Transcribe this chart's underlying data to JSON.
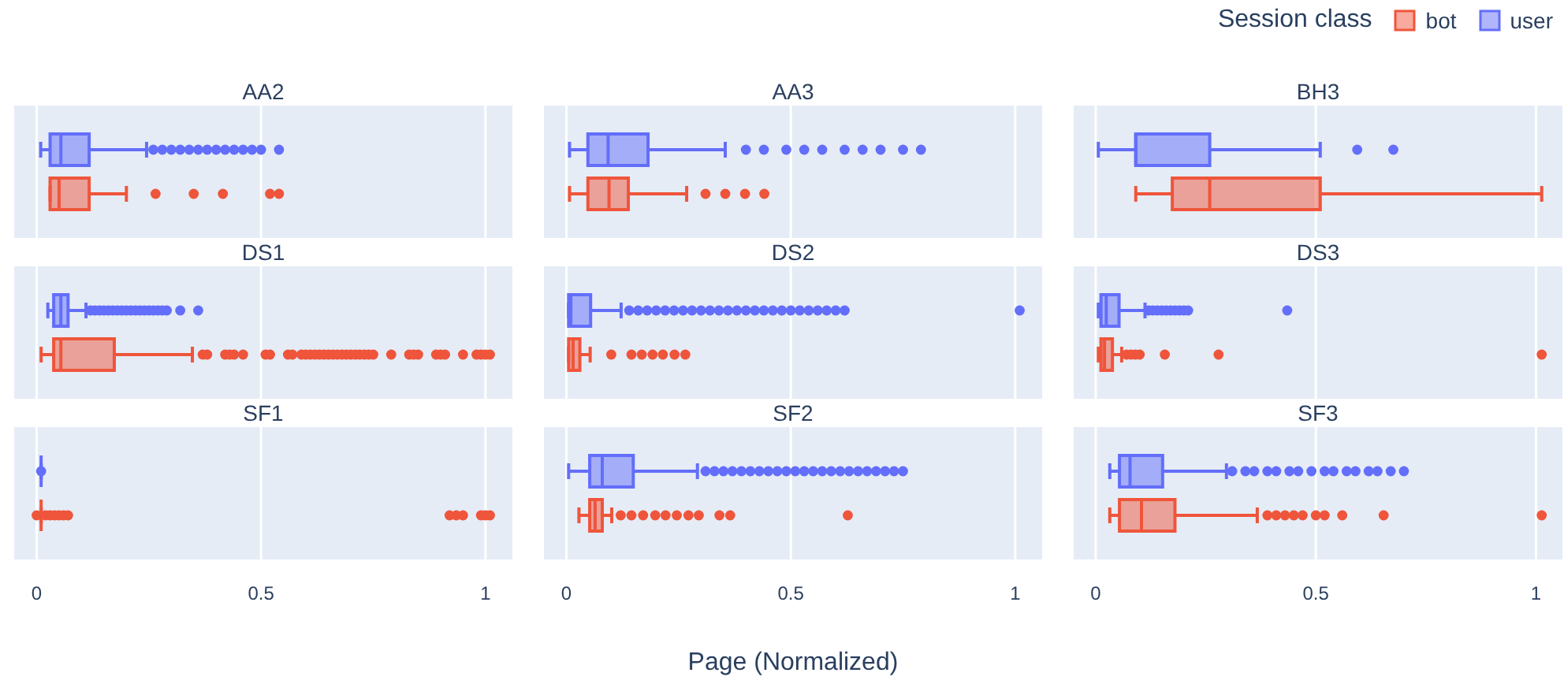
{
  "chart_data": [
    {
      "type": "box",
      "orientation": "horizontal",
      "categories": [
        null,
        null,
        null
      ],
      "annotations": [
        "AA2",
        "DS1",
        "SF1"
      ],
      "xlim": [
        -0.05,
        1.06
      ],
      "xticks": [
        0,
        0.5,
        1
      ],
      "grid": "x",
      "tick_labels": "x",
      "series": [
        {
          "color": "#ef553b",
          "boxes": [
            {
              "low": 0.03,
              "q1": 0.03,
              "median": 0.05,
              "q3": 0.117,
              "high": 0.2,
              "outliers": [
                0.265,
                0.35,
                0.415,
                0.52,
                0.54
              ]
            },
            {
              "low": 0.01,
              "q1": 0.038,
              "median": 0.054,
              "q3": 0.173,
              "high": 0.347,
              "outliers": [
                0.37,
                0.38,
                0.42,
                0.43,
                0.44,
                0.46,
                0.51,
                0.52,
                0.56,
                0.57,
                0.59,
                0.6,
                0.61,
                0.62,
                0.63,
                0.64,
                0.65,
                0.66,
                0.67,
                0.68,
                0.69,
                0.7,
                0.71,
                0.72,
                0.73,
                0.74,
                0.75,
                0.79,
                0.83,
                0.84,
                0.85,
                0.89,
                0.9,
                0.91,
                0.95,
                0.98,
                0.99,
                1.0,
                1.01
              ]
            },
            {
              "low": 0.01,
              "q1": 0.01,
              "median": 0.01,
              "q3": 0.01,
              "high": 0.01,
              "outliers": [
                0.0,
                0.02,
                0.03,
                0.04,
                0.05,
                0.06,
                0.07,
                0.92,
                0.935,
                0.95,
                0.99,
                1.0,
                1.01
              ]
            }
          ]
        },
        {
          "color": "#636efa",
          "boxes": [
            {
              "low": 0.009,
              "q1": 0.03,
              "median": 0.054,
              "q3": 0.117,
              "high": 0.245,
              "outliers": [
                0.26,
                0.28,
                0.3,
                0.32,
                0.34,
                0.36,
                0.38,
                0.4,
                0.42,
                0.44,
                0.46,
                0.48,
                0.5,
                0.54
              ]
            },
            {
              "low": 0.025,
              "q1": 0.038,
              "median": 0.054,
              "q3": 0.07,
              "high": 0.11,
              "outliers": [
                0.12,
                0.13,
                0.14,
                0.15,
                0.16,
                0.17,
                0.18,
                0.19,
                0.2,
                0.21,
                0.22,
                0.23,
                0.24,
                0.25,
                0.26,
                0.27,
                0.28,
                0.29,
                0.32,
                0.36
              ]
            },
            {
              "low": 0.01,
              "q1": 0.01,
              "median": 0.01,
              "q3": 0.01,
              "high": 0.01,
              "outliers": [
                0.01
              ]
            }
          ]
        }
      ]
    },
    {
      "type": "box",
      "orientation": "horizontal",
      "categories": [
        null,
        null,
        null
      ],
      "annotations": [
        "AA3",
        "DS2",
        "SF2"
      ],
      "xlim": [
        -0.05,
        1.06
      ],
      "xticks": [
        0,
        0.5,
        1
      ],
      "grid": "x",
      "tick_labels": "x",
      "xlabel": "Page (Normalized)",
      "series": [
        {
          "color": "#ef553b",
          "boxes": [
            {
              "low": 0.007,
              "q1": 0.048,
              "median": 0.095,
              "q3": 0.138,
              "high": 0.268,
              "outliers": [
                0.31,
                0.354,
                0.398,
                0.441
              ]
            },
            {
              "low": 0.005,
              "q1": 0.005,
              "median": 0.015,
              "q3": 0.03,
              "high": 0.053,
              "outliers": [
                0.1,
                0.145,
                0.168,
                0.192,
                0.215,
                0.241,
                0.265
              ]
            },
            {
              "low": 0.028,
              "q1": 0.052,
              "median": 0.064,
              "q3": 0.08,
              "high": 0.101,
              "outliers": [
                0.121,
                0.145,
                0.171,
                0.198,
                0.221,
                0.246,
                0.272,
                0.295,
                0.341,
                0.365,
                0.627
              ]
            }
          ]
        },
        {
          "color": "#636efa",
          "boxes": [
            {
              "low": 0.007,
              "q1": 0.048,
              "median": 0.093,
              "q3": 0.182,
              "high": 0.354,
              "outliers": [
                0.4,
                0.44,
                0.49,
                0.53,
                0.57,
                0.62,
                0.66,
                0.7,
                0.75,
                0.79
              ]
            },
            {
              "low": 0.005,
              "q1": 0.005,
              "median": 0.01,
              "q3": 0.054,
              "high": 0.122,
              "outliers": [
                0.14,
                0.16,
                0.18,
                0.2,
                0.22,
                0.24,
                0.26,
                0.28,
                0.3,
                0.32,
                0.34,
                0.36,
                0.38,
                0.4,
                0.42,
                0.44,
                0.46,
                0.48,
                0.5,
                0.52,
                0.54,
                0.56,
                0.58,
                0.6,
                0.62,
                1.01
              ]
            },
            {
              "low": 0.005,
              "q1": 0.052,
              "median": 0.08,
              "q3": 0.149,
              "high": 0.292,
              "outliers": [
                0.31,
                0.33,
                0.35,
                0.37,
                0.39,
                0.41,
                0.43,
                0.45,
                0.47,
                0.49,
                0.51,
                0.53,
                0.55,
                0.57,
                0.59,
                0.61,
                0.63,
                0.65,
                0.67,
                0.69,
                0.71,
                0.73,
                0.75
              ]
            }
          ]
        }
      ]
    },
    {
      "type": "box",
      "orientation": "horizontal",
      "categories": [
        null,
        null,
        null
      ],
      "annotations": [
        "BH3",
        "DS3",
        "SF3"
      ],
      "xlim": [
        -0.05,
        1.06
      ],
      "xticks": [
        0,
        0.5,
        1
      ],
      "grid": "x",
      "tick_labels": "x",
      "legend": "top right",
      "legend_title": "Session class",
      "series": [
        {
          "name": "bot",
          "color": "#ef553b",
          "boxes": [
            {
              "low": 0.091,
              "q1": 0.174,
              "median": 0.259,
              "q3": 0.51,
              "high": 1.013
            },
            {
              "low": 0.006,
              "q1": 0.012,
              "median": 0.02,
              "q3": 0.038,
              "high": 0.059,
              "outliers": [
                0.07,
                0.08,
                0.09,
                0.1,
                0.157,
                0.279,
                1.013
              ]
            },
            {
              "low": 0.032,
              "q1": 0.054,
              "median": 0.104,
              "q3": 0.18,
              "high": 0.367,
              "outliers": [
                0.39,
                0.41,
                0.43,
                0.45,
                0.47,
                0.5,
                0.52,
                0.56,
                0.654,
                1.013
              ]
            }
          ]
        },
        {
          "name": "user",
          "color": "#636efa",
          "boxes": [
            {
              "low": 0.006,
              "q1": 0.091,
              "median": 0.091,
              "q3": 0.259,
              "high": 0.51,
              "outliers": [
                0.594,
                0.676
              ]
            },
            {
              "low": 0.006,
              "q1": 0.012,
              "median": 0.024,
              "q3": 0.053,
              "high": 0.112,
              "outliers": [
                0.12,
                0.13,
                0.14,
                0.15,
                0.16,
                0.17,
                0.18,
                0.19,
                0.2,
                0.21,
                0.435
              ]
            },
            {
              "low": 0.032,
              "q1": 0.054,
              "median": 0.078,
              "q3": 0.152,
              "high": 0.297,
              "outliers": [
                0.31,
                0.34,
                0.36,
                0.39,
                0.41,
                0.44,
                0.46,
                0.49,
                0.52,
                0.54,
                0.57,
                0.59,
                0.62,
                0.64,
                0.67,
                0.7
              ]
            }
          ]
        }
      ]
    }
  ]
}
